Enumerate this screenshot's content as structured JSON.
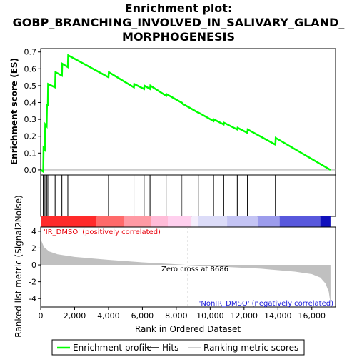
{
  "title_line1": "Enrichment plot:",
  "title_line2": "GOBP_BRANCHING_INVOLVED_IN_SALIVARY_GLAND_",
  "title_line3": "MORPHOGENESIS",
  "chart_data": [
    {
      "type": "line",
      "panel": "enrichment",
      "ylabel": "Enrichment score (ES)",
      "ylim": [
        -0.03,
        0.72
      ],
      "xlim": [
        0,
        17400
      ],
      "yticks": [
        "0.0",
        "0.1",
        "0.2",
        "0.3",
        "0.4",
        "0.5",
        "0.6",
        "0.7"
      ],
      "ytick_values": [
        0.0,
        0.1,
        0.2,
        0.3,
        0.4,
        0.5,
        0.6,
        0.7
      ],
      "series": [
        {
          "name": "Enrichment profile",
          "color": "#00ff00",
          "x": [
            0,
            150,
            170,
            250,
            270,
            350,
            370,
            420,
            440,
            850,
            870,
            1250,
            1270,
            1600,
            1620,
            4000,
            4020,
            5500,
            5520,
            6100,
            6120,
            6450,
            6470,
            7400,
            7420,
            8300,
            8320,
            8400,
            8420,
            9300,
            9320,
            10200,
            10220,
            10800,
            10820,
            11600,
            11620,
            12200,
            12220,
            13850,
            13870,
            17100
          ],
          "y": [
            0.0,
            -0.01,
            0.13,
            0.12,
            0.27,
            0.26,
            0.39,
            0.38,
            0.51,
            0.49,
            0.58,
            0.56,
            0.63,
            0.61,
            0.68,
            0.55,
            0.58,
            0.49,
            0.51,
            0.48,
            0.5,
            0.48,
            0.5,
            0.44,
            0.45,
            0.4,
            0.4,
            0.39,
            0.39,
            0.34,
            0.34,
            0.29,
            0.3,
            0.27,
            0.28,
            0.24,
            0.25,
            0.22,
            0.24,
            0.15,
            0.19,
            0.0
          ]
        }
      ]
    },
    {
      "type": "scatter",
      "panel": "hits",
      "name": "Hits",
      "x": [
        150,
        250,
        350,
        420,
        850,
        1250,
        1600,
        4000,
        5500,
        6100,
        6450,
        7400,
        8300,
        8400,
        9300,
        10200,
        10800,
        11600,
        12200,
        13850
      ]
    },
    {
      "type": "area",
      "panel": "ranked_metric",
      "name": "Ranking metric scores",
      "ylabel": "Ranked list metric (Signal2Noise)",
      "xlabel": "Rank in Ordered Dataset",
      "ylim": [
        -5,
        4.5
      ],
      "yticks": [
        "4",
        "2",
        "0",
        "-2",
        "-4"
      ],
      "ytick_values": [
        4,
        2,
        0,
        -2,
        -4
      ],
      "xticks": [
        "0",
        "2,000",
        "4,000",
        "6,000",
        "8,000",
        "10,000",
        "12,000",
        "14,000",
        "16,000"
      ],
      "xtick_values": [
        0,
        2000,
        4000,
        6000,
        8000,
        10000,
        12000,
        14000,
        16000
      ],
      "x": [
        0,
        50,
        200,
        500,
        1000,
        2000,
        4000,
        6000,
        8686,
        11000,
        13000,
        15000,
        16000,
        16500,
        16800,
        17000,
        17100
      ],
      "y": [
        4.0,
        2.8,
        2.1,
        1.6,
        1.25,
        0.95,
        0.6,
        0.3,
        0.0,
        -0.25,
        -0.45,
        -0.8,
        -1.1,
        -1.5,
        -2.2,
        -3.2,
        -4.6
      ],
      "zero_cross_label": "Zero cross at 8686",
      "zero_cross": 8686,
      "positive_label": "'IR_DMSO' (positively correlated)",
      "negative_label": "'NonIR_DMSO' (negatively correlated)"
    }
  ],
  "legend": {
    "items": [
      {
        "label": "Enrichment profile",
        "color": "#00ff00"
      },
      {
        "label": "Hits",
        "color": "#000000"
      },
      {
        "label": "Ranking metric scores",
        "color": "#c0c0c0"
      }
    ]
  },
  "colors": {
    "enrichment_line": "#00ff00",
    "positive_text": "#e8000b",
    "negative_text": "#1a1adb",
    "metric_fill": "#c0c0c0"
  }
}
